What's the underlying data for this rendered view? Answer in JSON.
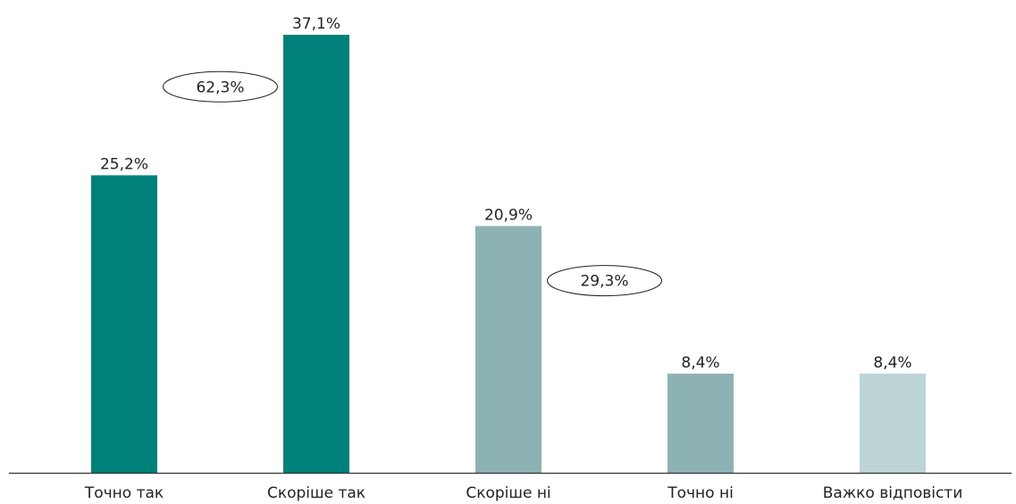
{
  "chart_data": {
    "type": "bar",
    "categories": [
      "Точно так",
      "Скоріше так",
      "Скоріше ні",
      "Точно ні",
      "Важко відповісти"
    ],
    "values": [
      25.2,
      37.1,
      20.9,
      8.4,
      8.4
    ],
    "value_labels": [
      "25,2%",
      "37,1%",
      "20,9%",
      "8,4%",
      "8,4%"
    ],
    "colors": [
      "#00807b",
      "#00807b",
      "#8db2b3",
      "#8db2b3",
      "#bcd4d6"
    ],
    "annotations": [
      {
        "text": "62,3%",
        "groups": [
          0,
          1
        ]
      },
      {
        "text": "29,3%",
        "groups": [
          2,
          3
        ]
      }
    ],
    "ylim": [
      0,
      37.1
    ],
    "axis_color": "#333333",
    "title": "",
    "xlabel": "",
    "ylabel": ""
  }
}
